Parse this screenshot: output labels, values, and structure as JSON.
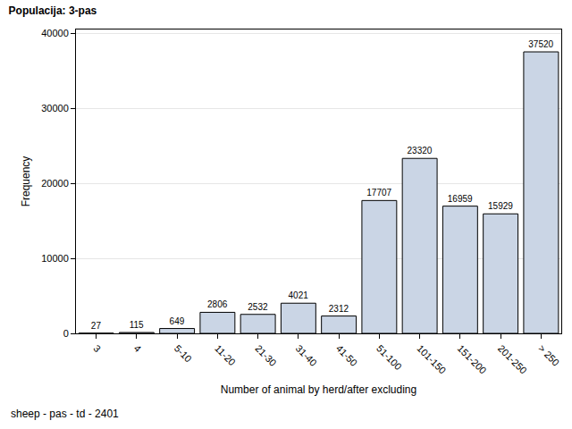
{
  "chart_data": {
    "type": "bar",
    "title": "Populacija: 3-pas",
    "footnote": "sheep - pas - td - 2401",
    "x_label": "Number of animal by herd/after excluding",
    "y_label": "Frequency",
    "categories": [
      "3",
      "4",
      "5-10",
      "11-20",
      "21-30",
      "31-40",
      "41-50",
      "51-100",
      "101-150",
      "151-200",
      "201-250",
      "> 250"
    ],
    "values": [
      27,
      115,
      649,
      2806,
      2532,
      4021,
      2312,
      17707,
      23320,
      16959,
      15929,
      37520
    ],
    "color": "#cad5e5",
    "ylim": [
      0,
      40500
    ],
    "yticks": [
      0,
      10000,
      20000,
      30000,
      40000
    ],
    "grid": true,
    "data_labels": true
  }
}
